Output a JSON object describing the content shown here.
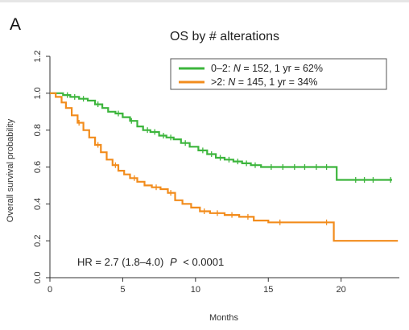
{
  "panel_label": "A",
  "chart_data": {
    "type": "line",
    "subtype": "kaplan-meier",
    "title": "OS by # alterations",
    "xlabel": "Months",
    "ylabel": "Overall survival probability",
    "xlim": [
      0,
      24
    ],
    "ylim": [
      0,
      1.2
    ],
    "xticks": [
      0,
      5,
      10,
      15,
      20
    ],
    "yticks": [
      "0.0",
      "0.2",
      "0.4",
      "0.6",
      "0.8",
      "1.0",
      "1.2"
    ],
    "grid": false,
    "legend_position": "top-right",
    "legend_box": true,
    "annotation": {
      "prefix": "HR = 2.7 (1.8–4.0)",
      "p_symbol": "P",
      "p_rest": "< 0.0001"
    },
    "series": [
      {
        "name": "0–2",
        "legend_prefix": "0–2: ",
        "n_symbol": "N",
        "legend_suffix": " = 152, 1 yr = 62%",
        "color": "#3cb53c",
        "points": [
          [
            0,
            1.0
          ],
          [
            0.5,
            1.0
          ],
          [
            0.9,
            0.99
          ],
          [
            1.4,
            0.98
          ],
          [
            2.0,
            0.97
          ],
          [
            2.6,
            0.96
          ],
          [
            3.1,
            0.94
          ],
          [
            3.6,
            0.92
          ],
          [
            4.0,
            0.9
          ],
          [
            4.5,
            0.89
          ],
          [
            5.0,
            0.87
          ],
          [
            5.5,
            0.85
          ],
          [
            6.0,
            0.82
          ],
          [
            6.4,
            0.8
          ],
          [
            6.9,
            0.79
          ],
          [
            7.5,
            0.77
          ],
          [
            8.0,
            0.76
          ],
          [
            8.5,
            0.75
          ],
          [
            9.0,
            0.73
          ],
          [
            9.6,
            0.71
          ],
          [
            10.2,
            0.69
          ],
          [
            10.8,
            0.67
          ],
          [
            11.4,
            0.65
          ],
          [
            12.0,
            0.64
          ],
          [
            12.6,
            0.63
          ],
          [
            13.2,
            0.62
          ],
          [
            13.8,
            0.61
          ],
          [
            14.5,
            0.6
          ],
          [
            19.7,
            0.6
          ],
          [
            19.7,
            0.53
          ],
          [
            23.5,
            0.53
          ]
        ],
        "censor_x": [
          1.2,
          1.7,
          2.3,
          3.3,
          4.7,
          5.6,
          6.7,
          7.2,
          7.8,
          8.3,
          9.3,
          10.5,
          11.1,
          11.7,
          12.3,
          12.9,
          13.5,
          14.1,
          15.2,
          16.0,
          16.8,
          17.5,
          18.3,
          19.0,
          21.0,
          21.6,
          22.2,
          23.4
        ]
      },
      {
        "name": ">2",
        "legend_prefix": ">2: ",
        "n_symbol": "N",
        "legend_suffix": " = 145, 1 yr = 34%",
        "color": "#f28c1c",
        "points": [
          [
            0,
            1.0
          ],
          [
            0.4,
            0.98
          ],
          [
            0.8,
            0.95
          ],
          [
            1.1,
            0.92
          ],
          [
            1.5,
            0.88
          ],
          [
            1.9,
            0.84
          ],
          [
            2.3,
            0.8
          ],
          [
            2.7,
            0.76
          ],
          [
            3.1,
            0.72
          ],
          [
            3.5,
            0.68
          ],
          [
            3.9,
            0.64
          ],
          [
            4.3,
            0.61
          ],
          [
            4.7,
            0.58
          ],
          [
            5.1,
            0.56
          ],
          [
            5.5,
            0.54
          ],
          [
            6.0,
            0.52
          ],
          [
            6.5,
            0.5
          ],
          [
            7.0,
            0.49
          ],
          [
            7.6,
            0.48
          ],
          [
            8.1,
            0.46
          ],
          [
            8.6,
            0.42
          ],
          [
            9.1,
            0.4
          ],
          [
            9.7,
            0.38
          ],
          [
            10.3,
            0.36
          ],
          [
            11.0,
            0.35
          ],
          [
            12.0,
            0.34
          ],
          [
            13.0,
            0.33
          ],
          [
            14.0,
            0.31
          ],
          [
            15.0,
            0.3
          ],
          [
            19.5,
            0.3
          ],
          [
            19.5,
            0.2
          ],
          [
            23.9,
            0.2
          ]
        ],
        "censor_x": [
          2.0,
          3.3,
          4.5,
          5.8,
          7.3,
          8.3,
          10.6,
          11.5,
          12.5,
          13.6,
          15.8,
          19.0
        ]
      }
    ]
  }
}
